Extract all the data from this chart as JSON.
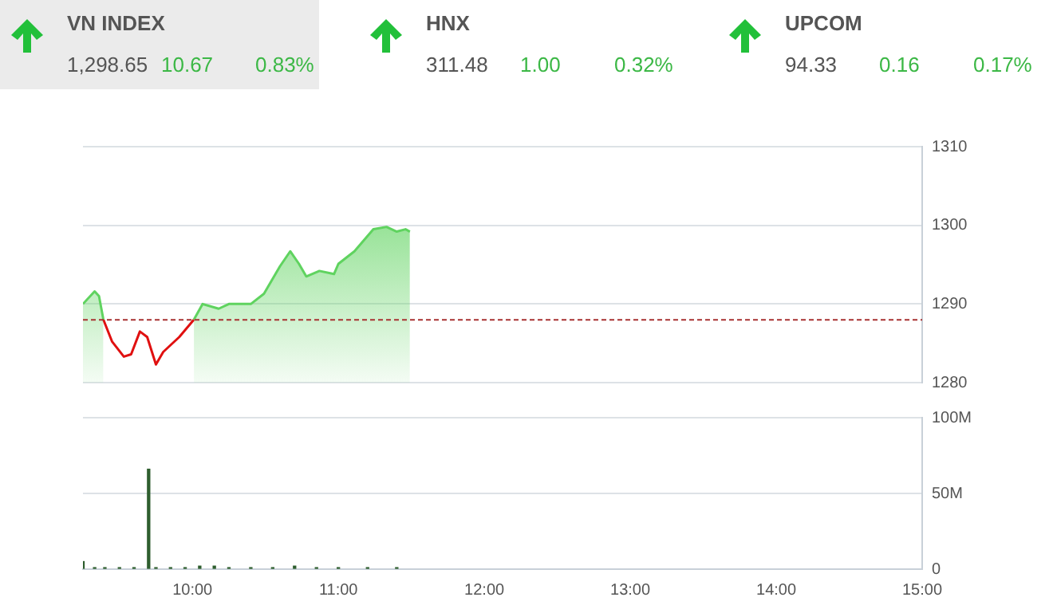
{
  "chart_data": [
    {
      "type": "other",
      "title": "VN INDEX",
      "annotations": [
        "1,298.65",
        "10.67",
        "0.83%"
      ]
    },
    {
      "type": "other",
      "title": "HNX",
      "annotations": [
        "311.48",
        "1.00",
        "0.32%"
      ]
    },
    {
      "type": "other",
      "title": "UPCOM",
      "annotations": [
        "94.33",
        "0.16",
        "0.17%"
      ]
    },
    {
      "type": "line",
      "xlim": [
        9.25,
        15
      ],
      "ylim": [
        1280,
        1310
      ],
      "yticks": [
        1280,
        1290,
        1300,
        1310
      ],
      "grid": "y",
      "tick_labels": "y",
      "series": [
        {
          "type": "area",
          "color": "#5fd35f",
          "x": [
            9.25,
            9.33,
            9.36,
            9.39
          ],
          "values": [
            1290.0,
            1291.6,
            1291.0,
            1288.0
          ]
        },
        {
          "type": "area",
          "color": "#5fd35f",
          "x": [
            10.01,
            10.07,
            10.18,
            10.25,
            10.4,
            10.49,
            10.6,
            10.67,
            10.73,
            10.78,
            10.87,
            10.97,
            11.0,
            11.11,
            11.24,
            11.33,
            11.4,
            11.46,
            11.49
          ],
          "values": [
            1288.0,
            1290.0,
            1289.4,
            1290.0,
            1290.0,
            1291.3,
            1294.8,
            1296.7,
            1295.1,
            1293.5,
            1294.2,
            1293.8,
            1295.1,
            1296.7,
            1299.5,
            1299.8,
            1299.2,
            1299.5,
            1299.2
          ]
        },
        {
          "type": "line",
          "color": "#e01010",
          "x": [
            9.39,
            9.45,
            9.53,
            9.58,
            9.64,
            9.69,
            9.75,
            9.8,
            9.91,
            10.01
          ],
          "values": [
            1288.0,
            1285.2,
            1283.3,
            1283.6,
            1286.5,
            1285.8,
            1282.3,
            1283.9,
            1285.8,
            1288.0
          ]
        }
      ],
      "ref_lines": [
        {
          "axis": "y",
          "value": 1287.98,
          "color": "#a83232",
          "line_style": "dashed"
        }
      ]
    },
    {
      "type": "bar",
      "xlim": [
        9.25,
        15
      ],
      "xticks": [
        {
          "value": 10,
          "label": "10:00"
        },
        {
          "value": 11,
          "label": "11:00"
        },
        {
          "value": 12,
          "label": "12:00"
        },
        {
          "value": 13,
          "label": "13:00"
        },
        {
          "value": 14,
          "label": "14:00"
        },
        {
          "value": 15,
          "label": "15:00"
        }
      ],
      "ylim": [
        0,
        100
      ],
      "yticks": [
        0,
        {
          "value": 50,
          "label": "50M"
        },
        {
          "value": 100,
          "label": "100M"
        }
      ],
      "grid": "y",
      "series": [
        {
          "color": "#2e5e2e",
          "x": [
            9.25,
            9.33,
            9.4,
            9.5,
            9.6,
            9.7,
            9.75,
            9.85,
            9.95,
            10.05,
            10.15,
            10.25,
            10.4,
            10.55,
            10.7,
            10.85,
            11.0,
            11.2,
            11.4
          ],
          "values": [
            5,
            1,
            1,
            1,
            1,
            66,
            1,
            1,
            1,
            2,
            2,
            1,
            1,
            1,
            2,
            1,
            1,
            1,
            1
          ]
        }
      ]
    }
  ]
}
